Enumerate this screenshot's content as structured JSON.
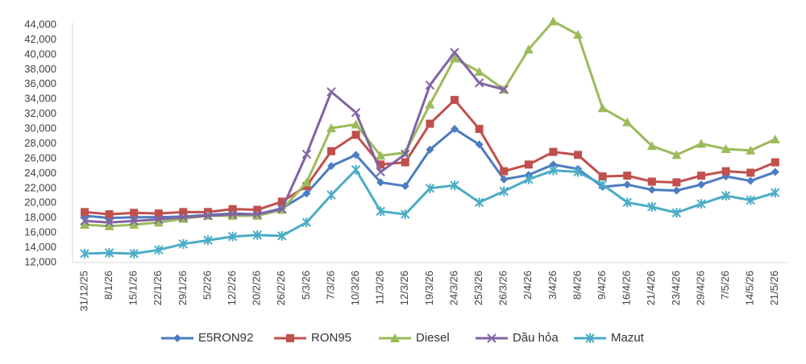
{
  "chart_data": {
    "type": "line",
    "categories": [
      "31/12/25",
      "8/1/26",
      "15/1/26",
      "22/1/26",
      "29/1/26",
      "5/2/26",
      "12/2/26",
      "20/2/26",
      "26/2/26",
      "5/3/26",
      "7/3/26",
      "10/3/26",
      "11/3/26",
      "12/3/26",
      "19/3/26",
      "24/3/26",
      "25/3/26",
      "26/3/26",
      "2/4/26",
      "3/4/26",
      "8/4/26",
      "9/4/26",
      "16/4/26",
      "21/4/26",
      "23/4/26",
      "29/4/26",
      "7/5/26",
      "14/5/26",
      "21/5/26"
    ],
    "series": [
      {
        "name": "E5RON92",
        "color": "#4a7cc2",
        "marker": "diamond",
        "values": [
          18300,
          18000,
          18100,
          18100,
          18200,
          18400,
          18600,
          18500,
          19300,
          21300,
          25000,
          26500,
          22800,
          22300,
          27200,
          30000,
          27900,
          23200,
          23800,
          25200,
          24600,
          22200,
          22500,
          21800,
          21700,
          22500,
          23600,
          23000,
          24200
        ]
      },
      {
        "name": "RON95",
        "color": "#c0504d",
        "marker": "square",
        "values": [
          18800,
          18500,
          18700,
          18600,
          18800,
          18800,
          19200,
          19100,
          20200,
          22300,
          27000,
          29200,
          25200,
          25500,
          30700,
          33900,
          30000,
          24300,
          25200,
          26900,
          26500,
          23600,
          23700,
          22900,
          22800,
          23700,
          24300,
          24100,
          25500
        ]
      },
      {
        "name": "Diesel",
        "color": "#9bbb59",
        "marker": "triangle",
        "values": [
          17100,
          16900,
          17100,
          17400,
          17900,
          18300,
          18300,
          18300,
          19100,
          22800,
          30100,
          30600,
          26400,
          26800,
          33300,
          39500,
          37700,
          35300,
          40700,
          44500,
          42700,
          32800,
          30900,
          27700,
          26500,
          28000,
          27300,
          27100,
          28600
        ]
      },
      {
        "name": "Dầu hỏa",
        "color": "#8064a2",
        "marker": "x",
        "values": [
          17600,
          17400,
          17600,
          17800,
          18100,
          18300,
          18500,
          18500,
          19200,
          26600,
          35000,
          32200,
          24200,
          26600,
          35900,
          40300,
          36200,
          35300,
          null,
          null,
          null,
          null,
          null,
          null,
          null,
          null,
          null,
          null,
          null
        ]
      },
      {
        "name": "Mazut",
        "color": "#4bacc6",
        "marker": "star",
        "values": [
          13200,
          13300,
          13200,
          13700,
          14500,
          15000,
          15500,
          15700,
          15600,
          17400,
          21100,
          24500,
          18900,
          18500,
          22000,
          22400,
          20100,
          21600,
          23200,
          24400,
          24200,
          22500,
          20100,
          19500,
          18700,
          19900,
          21000,
          20400,
          21400
        ]
      }
    ],
    "ylim": [
      12000,
      44000
    ],
    "yticks": [
      {
        "value": 12000,
        "label": "12,000"
      },
      {
        "value": 14000,
        "label": "14,000"
      },
      {
        "value": 16000,
        "label": "16,000"
      },
      {
        "value": 18000,
        "label": "18,000"
      },
      {
        "value": 20000,
        "label": "20,000"
      },
      {
        "value": 22000,
        "label": "22,000"
      },
      {
        "value": 24000,
        "label": "24,000"
      },
      {
        "value": 26000,
        "label": "26,000"
      },
      {
        "value": 28000,
        "label": "28,000"
      },
      {
        "value": 30000,
        "label": "30,000"
      },
      {
        "value": 32000,
        "label": "32,000"
      },
      {
        "value": 34000,
        "label": "34,000"
      },
      {
        "value": 36000,
        "label": "36,000"
      },
      {
        "value": 38000,
        "label": "38,000"
      },
      {
        "value": 40000,
        "label": "40,000"
      },
      {
        "value": 42000,
        "label": "42,000"
      },
      {
        "value": 44000,
        "label": "44,000"
      }
    ],
    "grid": false,
    "legend": "bottom"
  }
}
